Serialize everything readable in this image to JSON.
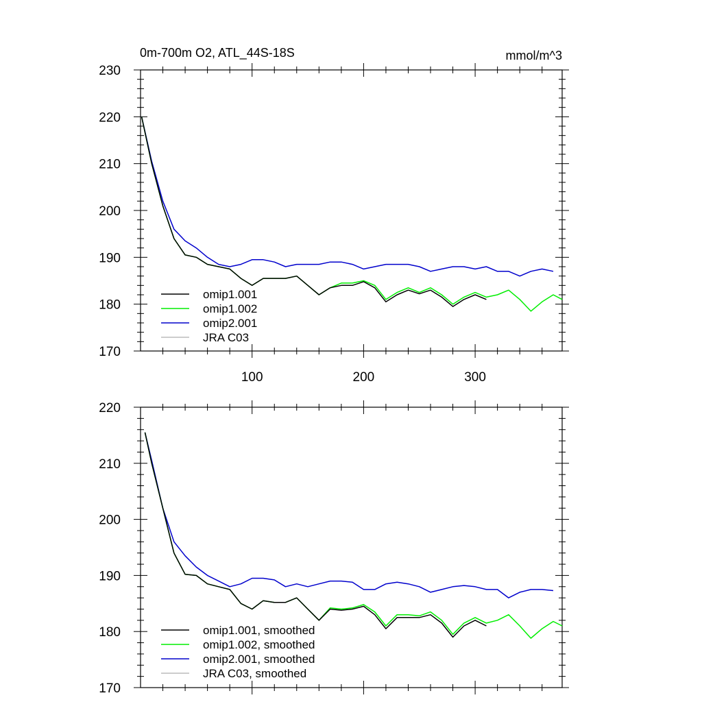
{
  "chart_data": [
    {
      "type": "line",
      "title": "0m-700m O2, ATL_44S-18S",
      "units": "mmol/m^3",
      "xlim": [
        0,
        378
      ],
      "ylim": [
        170,
        230
      ],
      "xticks": [
        100,
        200,
        300
      ],
      "xtick_labels": [
        "100",
        "200",
        "300"
      ],
      "yticks": [
        170,
        180,
        190,
        200,
        210,
        220,
        230
      ],
      "ytick_labels": [
        "170",
        "180",
        "190",
        "200",
        "210",
        "220",
        "230"
      ],
      "legend_position": "bottom-left",
      "series": [
        {
          "name": "omip1.001",
          "color": "#000000",
          "x": [
            1,
            10,
            20,
            30,
            40,
            50,
            60,
            70,
            80,
            90,
            100,
            110,
            120,
            130,
            140,
            150,
            160,
            170,
            180,
            190,
            200,
            210,
            220,
            230,
            240,
            250,
            260,
            270,
            280,
            290,
            300,
            310
          ],
          "y": [
            220,
            210,
            201,
            194,
            190.5,
            190,
            188.5,
            188,
            187.5,
            185.5,
            184,
            185.5,
            185.5,
            185.5,
            186,
            184,
            182,
            183.5,
            184,
            184,
            184.8,
            183.5,
            180.5,
            182,
            183,
            182.2,
            183,
            181.5,
            179.5,
            181,
            182,
            181
          ]
        },
        {
          "name": "omip1.002",
          "color": "#00ee00",
          "x": [
            1,
            10,
            20,
            30,
            40,
            50,
            60,
            70,
            80,
            90,
            100,
            110,
            120,
            130,
            140,
            150,
            160,
            170,
            180,
            190,
            200,
            210,
            220,
            230,
            240,
            250,
            260,
            270,
            280,
            290,
            300,
            310,
            320,
            330,
            340,
            350,
            360,
            370,
            378
          ],
          "y": [
            220,
            210,
            201,
            194,
            190.5,
            190,
            188.5,
            188,
            187.5,
            185.5,
            184,
            185.5,
            185.5,
            185.5,
            186,
            184,
            182,
            183.5,
            184.5,
            184.5,
            185,
            184,
            181,
            182.5,
            183.5,
            182.5,
            183.5,
            182,
            180,
            181.5,
            182.5,
            181.5,
            182,
            183,
            181,
            178.5,
            180.5,
            182,
            181
          ]
        },
        {
          "name": "omip2.001",
          "color": "#0000cc",
          "x": [
            1,
            10,
            20,
            30,
            40,
            50,
            60,
            70,
            80,
            90,
            100,
            110,
            120,
            130,
            140,
            150,
            160,
            170,
            180,
            190,
            200,
            210,
            220,
            230,
            240,
            250,
            260,
            270,
            280,
            290,
            300,
            310,
            320,
            330,
            340,
            350,
            360,
            370
          ],
          "y": [
            220,
            210.5,
            202,
            196,
            193.5,
            192,
            190,
            188.5,
            188,
            188.5,
            189.5,
            189.5,
            189,
            188,
            188.5,
            188.5,
            188.5,
            189,
            189,
            188.5,
            187.5,
            188,
            188.5,
            188.5,
            188.5,
            188,
            187,
            187.5,
            188,
            188,
            187.5,
            188,
            187,
            187,
            186,
            187,
            187.5,
            187
          ]
        },
        {
          "name": "JRA C03",
          "color": "#bbbbbb",
          "x": [],
          "y": []
        }
      ]
    },
    {
      "type": "line",
      "title": "",
      "units": "",
      "xlim": [
        0,
        378
      ],
      "ylim": [
        170,
        220
      ],
      "xticks": [
        100,
        200,
        300
      ],
      "xtick_labels": [],
      "yticks": [
        170,
        180,
        190,
        200,
        210,
        220
      ],
      "ytick_labels": [
        "170",
        "180",
        "190",
        "200",
        "210",
        "220"
      ],
      "legend_position": "bottom-left",
      "series": [
        {
          "name": "omip1.001, smoothed",
          "color": "#000000",
          "x": [
            4,
            10,
            20,
            30,
            40,
            50,
            60,
            70,
            80,
            90,
            100,
            110,
            120,
            130,
            140,
            150,
            160,
            170,
            180,
            190,
            200,
            210,
            220,
            230,
            240,
            250,
            260,
            270,
            280,
            290,
            300,
            310
          ],
          "y": [
            215.5,
            210,
            202,
            194,
            190.2,
            190,
            188.5,
            188,
            187.5,
            185,
            184,
            185.5,
            185.2,
            185.2,
            186,
            184,
            182,
            184,
            183.8,
            184,
            184.5,
            183,
            180.5,
            182.5,
            182.5,
            182.5,
            183,
            181.5,
            179,
            181,
            182,
            181
          ]
        },
        {
          "name": "omip1.002, smoothed",
          "color": "#00ee00",
          "x": [
            4,
            10,
            20,
            30,
            40,
            50,
            60,
            70,
            80,
            90,
            100,
            110,
            120,
            130,
            140,
            150,
            160,
            170,
            180,
            190,
            200,
            210,
            220,
            230,
            240,
            250,
            260,
            270,
            280,
            290,
            300,
            310,
            320,
            330,
            340,
            350,
            360,
            370,
            378
          ],
          "y": [
            215.5,
            210,
            202,
            194,
            190.2,
            190,
            188.5,
            188,
            187.5,
            185,
            184,
            185.5,
            185.2,
            185.2,
            186,
            184,
            182,
            184.2,
            184,
            184.2,
            184.8,
            183.5,
            181,
            183,
            183,
            182.8,
            183.5,
            182,
            179.5,
            181.5,
            182.5,
            181.5,
            182,
            183,
            181,
            178.8,
            180.5,
            181.8,
            181
          ]
        },
        {
          "name": "omip2.001, smoothed",
          "color": "#0000cc",
          "x": [
            4,
            10,
            20,
            30,
            40,
            50,
            60,
            70,
            80,
            90,
            100,
            110,
            120,
            130,
            140,
            150,
            160,
            170,
            180,
            190,
            200,
            210,
            220,
            230,
            240,
            250,
            260,
            270,
            280,
            290,
            300,
            310,
            320,
            330,
            340,
            350,
            360,
            370
          ],
          "y": [
            215.5,
            210.5,
            202,
            196,
            193.5,
            191.5,
            190,
            189,
            188,
            188.5,
            189.5,
            189.5,
            189.2,
            188,
            188.5,
            188,
            188.5,
            189,
            189,
            188.8,
            187.5,
            187.5,
            188.5,
            188.8,
            188.5,
            188,
            187,
            187.5,
            188,
            188.2,
            188,
            187.5,
            187.5,
            186,
            187,
            187.5,
            187.5,
            187.3
          ]
        },
        {
          "name": "JRA C03, smoothed",
          "color": "#bbbbbb",
          "x": [],
          "y": []
        }
      ]
    }
  ]
}
